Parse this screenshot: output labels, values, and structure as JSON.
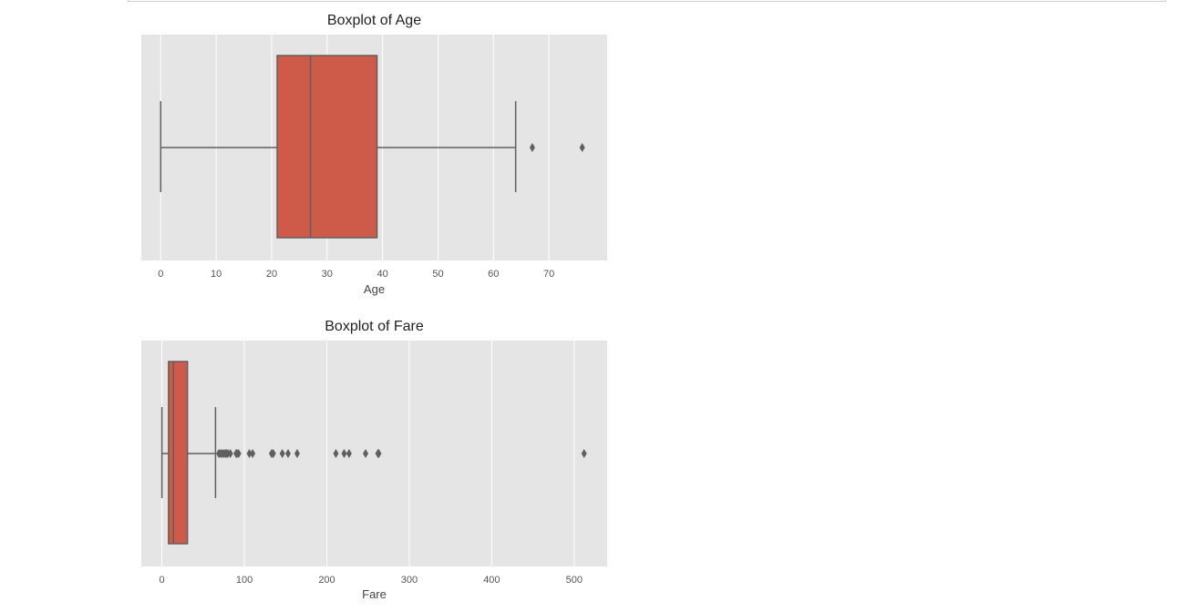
{
  "chart_data": [
    {
      "type": "box",
      "title": "Boxplot of Age",
      "xlabel": "Age",
      "ylabel": "",
      "xlim": [
        -3.5,
        80.5
      ],
      "xticks": [
        0,
        10,
        20,
        30,
        40,
        50,
        60,
        70
      ],
      "whisker_low": 0,
      "q1": 21,
      "median": 27,
      "q3": 39,
      "whisker_high": 64,
      "outliers": [
        67,
        76
      ],
      "grid": true,
      "colors": {
        "box": "#CE5B49",
        "line": "#5F5F5F",
        "bg": "#E5E5E5",
        "grid": "#FFFFFF"
      }
    },
    {
      "type": "box",
      "title": "Boxplot of Fare",
      "xlabel": "Fare",
      "ylabel": "",
      "xlim": [
        -25,
        540
      ],
      "xticks": [
        0,
        100,
        200,
        300,
        400,
        500
      ],
      "whisker_low": 0,
      "q1": 8,
      "median": 14,
      "q3": 31,
      "whisker_high": 65,
      "outliers": [
        69,
        71,
        73,
        75,
        77,
        78,
        80,
        83,
        90,
        91,
        93,
        106,
        110,
        133,
        135,
        146,
        153,
        164,
        211,
        221,
        227,
        247,
        262,
        263,
        512
      ],
      "grid": true,
      "colors": {
        "box": "#CE5B49",
        "line": "#5F5F5F",
        "bg": "#E5E5E5",
        "grid": "#FFFFFF"
      }
    }
  ]
}
